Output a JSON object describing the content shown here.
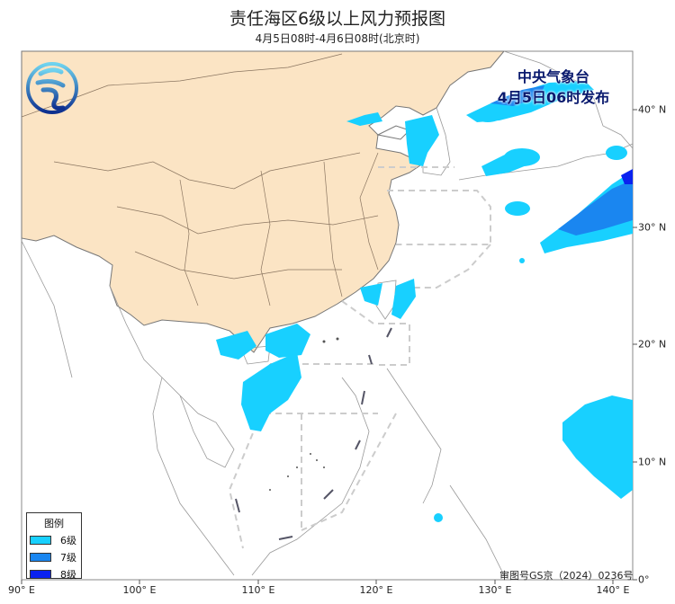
{
  "header": {
    "title": "责任海区6级以上风力预报图",
    "subtitle": "4月5日08时-4月6日08时(北京时)"
  },
  "issuer": {
    "name": "中央气象台",
    "issue_time": "4月5日06时发布",
    "logo": "cma-logo"
  },
  "legend": {
    "title": "图例",
    "items": [
      {
        "label": "6级",
        "color": "#18d0ff"
      },
      {
        "label": "7级",
        "color": "#1a86f0"
      },
      {
        "label": "8级",
        "color": "#0a22f0"
      }
    ]
  },
  "axes": {
    "lon_ticks": [
      "90° E",
      "100° E",
      "110° E",
      "120° E",
      "130° E",
      "140° E"
    ],
    "lat_ticks": [
      "40° N",
      "30° N",
      "20° N",
      "10° N",
      "0°"
    ]
  },
  "approval_number": "审图号GS京（2024）0236号",
  "colors": {
    "land": "#fbe4c4",
    "sea": "#ffffff",
    "boundary": "#c8c8c8"
  }
}
